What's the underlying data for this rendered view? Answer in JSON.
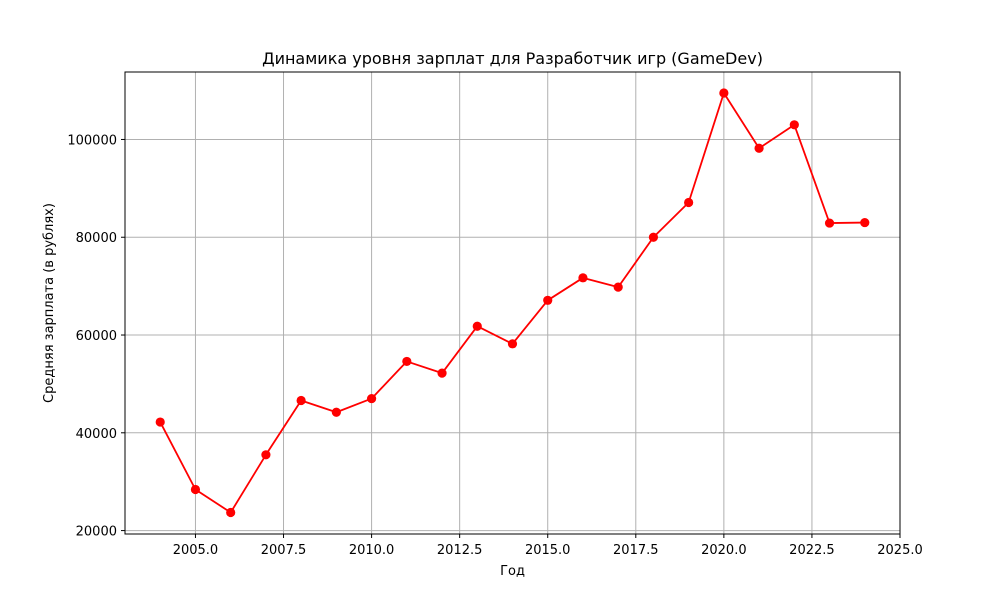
{
  "chart_data": {
    "type": "line",
    "title": "Динамика уровня зарплат для Разработчик игр (GameDev)",
    "xlabel": "Год",
    "ylabel": "Средняя зарплата (в рублях)",
    "xlim": [
      2003.0,
      2025.0
    ],
    "ylim": [
      19300,
      113800
    ],
    "xticks": [
      2005.0,
      2007.5,
      2010.0,
      2012.5,
      2015.0,
      2017.5,
      2020.0,
      2022.5,
      2025.0
    ],
    "xtick_labels": [
      "2005.0",
      "2007.5",
      "2010.0",
      "2012.5",
      "2015.0",
      "2017.5",
      "2020.0",
      "2022.5",
      "2025.0"
    ],
    "yticks": [
      20000,
      40000,
      60000,
      80000,
      100000
    ],
    "ytick_labels": [
      "20000",
      "40000",
      "60000",
      "80000",
      "100000"
    ],
    "grid": true,
    "series": [
      {
        "color": "#ff0000",
        "marker": "circle",
        "x": [
          2004,
          2005,
          2006,
          2007,
          2008,
          2009,
          2010,
          2011,
          2012,
          2013,
          2014,
          2015,
          2016,
          2017,
          2018,
          2019,
          2020,
          2021,
          2022,
          2023,
          2024
        ],
        "y": [
          42200,
          28400,
          23700,
          35500,
          46600,
          44200,
          47000,
          54600,
          52200,
          61800,
          58200,
          67100,
          71700,
          69800,
          80000,
          87100,
          109500,
          98200,
          103000,
          82900,
          83000
        ]
      }
    ]
  }
}
